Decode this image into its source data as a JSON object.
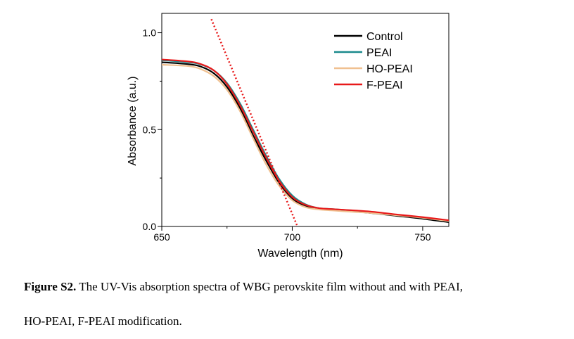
{
  "chart_data": {
    "type": "line",
    "xlabel": "Wavelength (nm)",
    "ylabel": "Absorbance (a.u.)",
    "xlim": [
      650,
      760
    ],
    "ylim": [
      0,
      1.1
    ],
    "xticks": [
      650,
      700,
      750
    ],
    "yticks": [
      0.0,
      0.5,
      1.0
    ],
    "ytick_labels": [
      "0.0",
      "0.5",
      "1.0"
    ],
    "grid": false,
    "legend_position": "top-right",
    "series": [
      {
        "name": "Control",
        "color": "#000000",
        "x": [
          650,
          660,
          665,
          670,
          675,
          680,
          685,
          690,
          695,
          700,
          705,
          710,
          715,
          720,
          730,
          740,
          750,
          760
        ],
        "y": [
          0.848,
          0.838,
          0.825,
          0.79,
          0.72,
          0.61,
          0.47,
          0.34,
          0.225,
          0.145,
          0.105,
          0.09,
          0.085,
          0.08,
          0.07,
          0.055,
          0.04,
          0.022
        ]
      },
      {
        "name": "PEAI",
        "color": "#1b8a8c",
        "x": [
          650,
          660,
          665,
          670,
          675,
          680,
          685,
          690,
          695,
          700,
          705,
          710,
          715,
          720,
          730,
          740,
          750,
          760
        ],
        "y": [
          0.858,
          0.848,
          0.836,
          0.805,
          0.74,
          0.635,
          0.5,
          0.365,
          0.245,
          0.16,
          0.115,
          0.095,
          0.09,
          0.085,
          0.075,
          0.06,
          0.045,
          0.028
        ]
      },
      {
        "name": "HO-PEAI",
        "color": "#f0c090",
        "x": [
          650,
          660,
          665,
          670,
          675,
          680,
          685,
          690,
          695,
          700,
          705,
          710,
          715,
          720,
          730,
          740,
          750,
          760
        ],
        "y": [
          0.835,
          0.828,
          0.812,
          0.775,
          0.705,
          0.595,
          0.455,
          0.32,
          0.21,
          0.135,
          0.1,
          0.088,
          0.083,
          0.078,
          0.07,
          0.058,
          0.045,
          0.028
        ]
      },
      {
        "name": "F-PEAI",
        "color": "#e8191a",
        "x": [
          650,
          660,
          665,
          670,
          675,
          680,
          685,
          690,
          695,
          700,
          705,
          710,
          715,
          720,
          730,
          740,
          750,
          760
        ],
        "y": [
          0.862,
          0.852,
          0.838,
          0.805,
          0.735,
          0.625,
          0.49,
          0.355,
          0.235,
          0.152,
          0.112,
          0.095,
          0.09,
          0.086,
          0.077,
          0.062,
          0.048,
          0.032
        ]
      }
    ],
    "tangent_line": {
      "color": "#e8191a",
      "style": "dotted",
      "x": [
        669,
        702
      ],
      "y": [
        1.07,
        0.0
      ]
    }
  },
  "caption": {
    "label": "Figure S2.",
    "text": " The UV-Vis absorption spectra of WBG perovskite film without and with PEAI,",
    "line2": "HO-PEAI, F-PEAI modification."
  }
}
